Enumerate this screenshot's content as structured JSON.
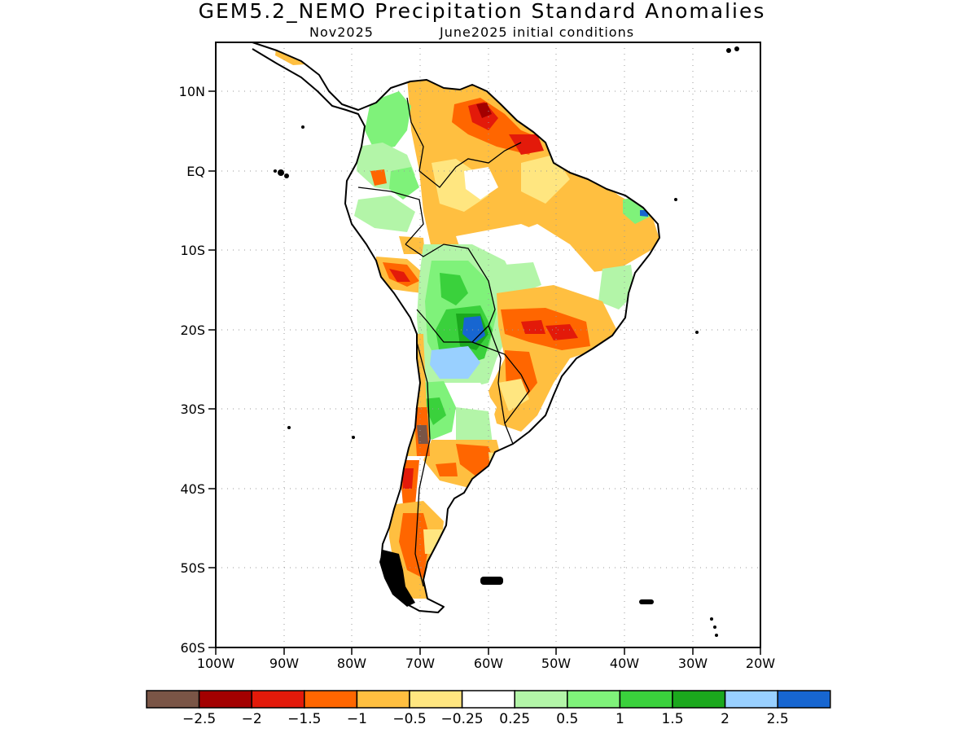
{
  "map": {
    "title": "GEM5.2_NEMO Precipitation Standard Anomalies",
    "subtitle_left": "Nov2025",
    "subtitle_right": "June2025 initial conditions",
    "lon_labels": [
      "100W",
      "90W",
      "80W",
      "70W",
      "60W",
      "50W",
      "40W",
      "30W",
      "20W"
    ],
    "lat_labels": [
      "10N",
      "EQ",
      "10S",
      "20S",
      "30S",
      "40S",
      "50S",
      "60S"
    ],
    "lon_range": [
      -100,
      -20
    ],
    "lat_range": [
      -60,
      15
    ]
  },
  "colorbar": {
    "colors": [
      "#7a5546",
      "#a30000",
      "#e31a0a",
      "#ff6600",
      "#ffbf40",
      "#ffe680",
      "#ffffff",
      "#b3f5a8",
      "#7ff27a",
      "#3ad13c",
      "#1ba81d",
      "#99d0ff",
      "#1766d1"
    ],
    "labels": [
      "−2.5",
      "−2",
      "−1.5",
      "−1",
      "−0.5",
      "−0.25",
      "0.25",
      "0.5",
      "1",
      "1.5",
      "2",
      "2.5"
    ]
  }
}
